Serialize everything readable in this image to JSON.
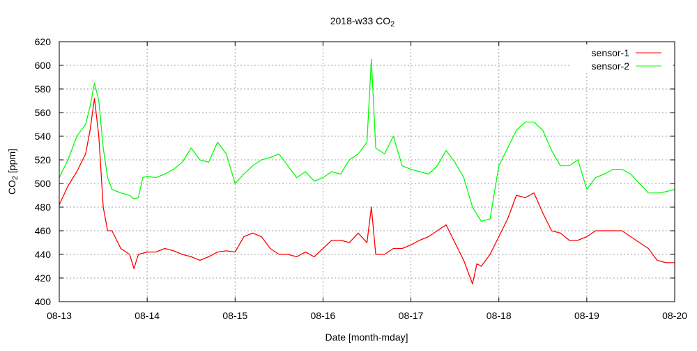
{
  "chart_data": {
    "type": "line",
    "title": "2018-w33 CO",
    "title_subscript": "2",
    "xlabel": "Date [month-mday]",
    "ylabel": "CO",
    "ylabel_subscript": "2",
    "ylabel_unit": " [ppm]",
    "xlim": [
      0,
      7
    ],
    "ylim": [
      400,
      620
    ],
    "x_unit": "days since 08-13",
    "xticks": [
      {
        "value": 0,
        "label": "08-13"
      },
      {
        "value": 1,
        "label": "08-14"
      },
      {
        "value": 2,
        "label": "08-15"
      },
      {
        "value": 3,
        "label": "08-16"
      },
      {
        "value": 4,
        "label": "08-17"
      },
      {
        "value": 5,
        "label": "08-18"
      },
      {
        "value": 6,
        "label": "08-19"
      },
      {
        "value": 7,
        "label": "08-20"
      }
    ],
    "yticks": [
      400,
      420,
      440,
      460,
      480,
      500,
      520,
      540,
      560,
      580,
      600,
      620
    ],
    "grid": true,
    "legend_position": "top-right",
    "series": [
      {
        "name": "sensor-1",
        "color": "#ff0000",
        "x": [
          0,
          0.1,
          0.2,
          0.3,
          0.35,
          0.4,
          0.45,
          0.5,
          0.55,
          0.6,
          0.7,
          0.8,
          0.85,
          0.9,
          1.0,
          1.1,
          1.2,
          1.3,
          1.4,
          1.5,
          1.6,
          1.7,
          1.8,
          1.9,
          2.0,
          2.1,
          2.2,
          2.3,
          2.4,
          2.5,
          2.6,
          2.7,
          2.8,
          2.9,
          3.0,
          3.1,
          3.2,
          3.3,
          3.4,
          3.5,
          3.55,
          3.6,
          3.7,
          3.8,
          3.9,
          4.0,
          4.1,
          4.2,
          4.3,
          4.4,
          4.5,
          4.6,
          4.7,
          4.75,
          4.8,
          4.9,
          5.0,
          5.1,
          5.2,
          5.3,
          5.4,
          5.5,
          5.6,
          5.7,
          5.8,
          5.9,
          6.0,
          6.1,
          6.2,
          6.3,
          6.4,
          6.5,
          6.6,
          6.7,
          6.8,
          6.9,
          7.0
        ],
        "y": [
          482,
          498,
          510,
          525,
          545,
          572,
          540,
          480,
          460,
          460,
          445,
          440,
          428,
          440,
          442,
          442,
          445,
          443,
          440,
          438,
          435,
          438,
          442,
          443,
          442,
          455,
          458,
          455,
          445,
          440,
          440,
          438,
          442,
          438,
          445,
          452,
          452,
          450,
          458,
          450,
          480,
          440,
          440,
          445,
          445,
          448,
          452,
          455,
          460,
          465,
          450,
          435,
          415,
          432,
          430,
          440,
          455,
          470,
          490,
          488,
          492,
          475,
          460,
          458,
          452,
          452,
          455,
          460,
          460,
          460,
          460,
          455,
          450,
          445,
          435,
          433,
          433
        ]
      },
      {
        "name": "sensor-2",
        "color": "#00ff00",
        "x": [
          0,
          0.1,
          0.2,
          0.3,
          0.35,
          0.4,
          0.45,
          0.5,
          0.55,
          0.6,
          0.7,
          0.8,
          0.85,
          0.9,
          0.95,
          1.0,
          1.1,
          1.2,
          1.3,
          1.4,
          1.5,
          1.6,
          1.7,
          1.8,
          1.9,
          2.0,
          2.1,
          2.2,
          2.3,
          2.4,
          2.5,
          2.6,
          2.7,
          2.8,
          2.9,
          3.0,
          3.1,
          3.2,
          3.3,
          3.4,
          3.5,
          3.55,
          3.6,
          3.7,
          3.8,
          3.9,
          4.0,
          4.1,
          4.2,
          4.3,
          4.4,
          4.5,
          4.6,
          4.7,
          4.8,
          4.9,
          5.0,
          5.1,
          5.2,
          5.3,
          5.4,
          5.5,
          5.6,
          5.7,
          5.8,
          5.9,
          6.0,
          6.1,
          6.2,
          6.3,
          6.4,
          6.5,
          6.6,
          6.7,
          6.8,
          6.9,
          7.0
        ],
        "y": [
          505,
          520,
          540,
          550,
          565,
          585,
          570,
          530,
          505,
          495,
          492,
          490,
          487,
          488,
          505,
          506,
          505,
          508,
          512,
          518,
          530,
          520,
          518,
          535,
          525,
          500,
          508,
          515,
          520,
          522,
          525,
          515,
          505,
          510,
          502,
          505,
          510,
          508,
          520,
          525,
          535,
          605,
          530,
          525,
          540,
          515,
          512,
          510,
          508,
          515,
          528,
          518,
          505,
          480,
          468,
          470,
          515,
          530,
          545,
          552,
          552,
          545,
          528,
          515,
          515,
          520,
          495,
          505,
          508,
          512,
          512,
          508,
          500,
          492,
          492,
          493,
          495
        ]
      }
    ]
  }
}
